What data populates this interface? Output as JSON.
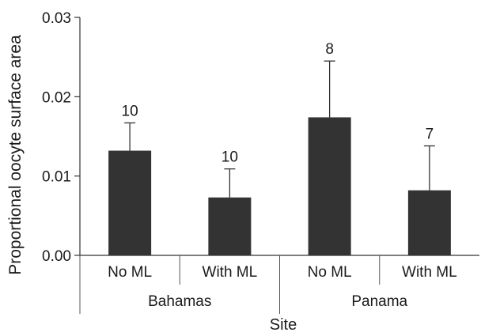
{
  "chart_data": {
    "type": "bar",
    "title": "",
    "xlabel": "Site",
    "ylabel": "Proportional oocyte surface area",
    "ylim": [
      0,
      0.03
    ],
    "yticks": [
      "0.00",
      "0.01",
      "0.02",
      "0.03"
    ],
    "grid": false,
    "legend": "none",
    "groups": [
      {
        "label": "Bahamas",
        "categories": [
          "No ML",
          "With ML"
        ]
      },
      {
        "label": "Panama",
        "categories": [
          "No ML",
          "With ML"
        ]
      }
    ],
    "categories": [
      "No ML",
      "With ML",
      "No ML",
      "With ML"
    ],
    "values": [
      0.0132,
      0.0073,
      0.0174,
      0.0082
    ],
    "error_upper": [
      0.0035,
      0.0036,
      0.0071,
      0.0056
    ],
    "n_labels": [
      "10",
      "10",
      "8",
      "7"
    ],
    "bar_color": "#333333"
  }
}
